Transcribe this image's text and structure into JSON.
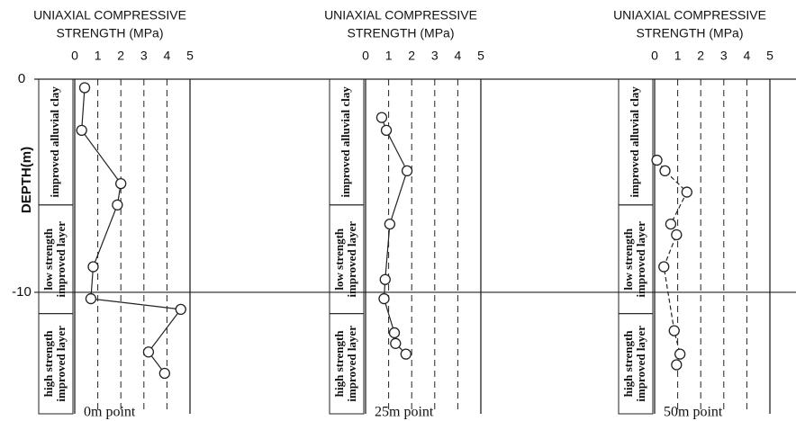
{
  "chart_data": [
    {
      "type": "scatter",
      "title": [
        "UNIAXIAL COMPRESSIVE",
        "STRENGTH (MPa)"
      ],
      "subtitle": "0m point",
      "ylabel": "DEPTH(m)",
      "ylim": [
        -15.7,
        0
      ],
      "yticks": [
        0,
        -10
      ],
      "xlim": [
        0,
        5
      ],
      "xticks": [
        0,
        1,
        2,
        3,
        4,
        5
      ],
      "linestyle": "solid",
      "layers": [
        {
          "lines": [
            "improved alluvial clay"
          ],
          "top": 0,
          "bottom": -5.9
        },
        {
          "lines": [
            "low strength",
            "improved layer"
          ],
          "top": -5.9,
          "bottom": -11.0
        },
        {
          "lines": [
            "high strength",
            "improved layer"
          ],
          "top": -11.0,
          "bottom": -15.7
        }
      ],
      "x": [
        0.43,
        0.3,
        2.0,
        1.85,
        0.8,
        0.7,
        4.6,
        3.2,
        3.9
      ],
      "y": [
        -0.4,
        -2.4,
        -4.9,
        -5.9,
        -8.8,
        -10.3,
        -10.8,
        -12.8,
        -13.8
      ]
    },
    {
      "type": "scatter",
      "title": [
        "UNIAXIAL COMPRESSIVE",
        "STRENGTH (MPa)"
      ],
      "subtitle": "25m point",
      "ylim": [
        -15.7,
        0
      ],
      "xlim": [
        0,
        5
      ],
      "xticks": [
        0,
        1,
        2,
        3,
        4,
        5
      ],
      "linestyle": "solid",
      "layers": [
        {
          "lines": [
            "improved alluvial clay"
          ],
          "top": 0,
          "bottom": -5.9
        },
        {
          "lines": [
            "low strength",
            "improved layer"
          ],
          "top": -5.9,
          "bottom": -11.0
        },
        {
          "lines": [
            "high strength",
            "improved layer"
          ],
          "top": -11.0,
          "bottom": -15.7
        }
      ],
      "x": [
        0.7,
        0.9,
        1.8,
        1.05,
        0.85,
        0.8,
        1.25,
        1.3,
        1.75
      ],
      "y": [
        -1.8,
        -2.4,
        -4.3,
        -6.8,
        -9.4,
        -10.3,
        -11.9,
        -12.4,
        -12.9
      ]
    },
    {
      "type": "scatter",
      "title": [
        "UNIAXIAL COMPRESSIVE",
        "STRENGTH (MPa)"
      ],
      "subtitle": "50m point",
      "ylim": [
        -15.7,
        0
      ],
      "xlim": [
        0,
        5
      ],
      "xticks": [
        0,
        1,
        2,
        3,
        4,
        5
      ],
      "linestyle": "dashed",
      "layers": [
        {
          "lines": [
            "improved alluvial clay"
          ],
          "top": 0,
          "bottom": -5.9
        },
        {
          "lines": [
            "low strength",
            "improved layer"
          ],
          "top": -5.9,
          "bottom": -11.0
        },
        {
          "lines": [
            "high strength",
            "improved layer"
          ],
          "top": -11.0,
          "bottom": -15.7
        }
      ],
      "x": [
        0.1,
        0.45,
        1.4,
        0.7,
        0.95,
        0.4,
        0.85,
        1.1,
        0.95
      ],
      "y": [
        -3.8,
        -4.3,
        -5.3,
        -6.8,
        -7.3,
        -8.8,
        -11.8,
        -12.9,
        -13.4
      ]
    }
  ]
}
